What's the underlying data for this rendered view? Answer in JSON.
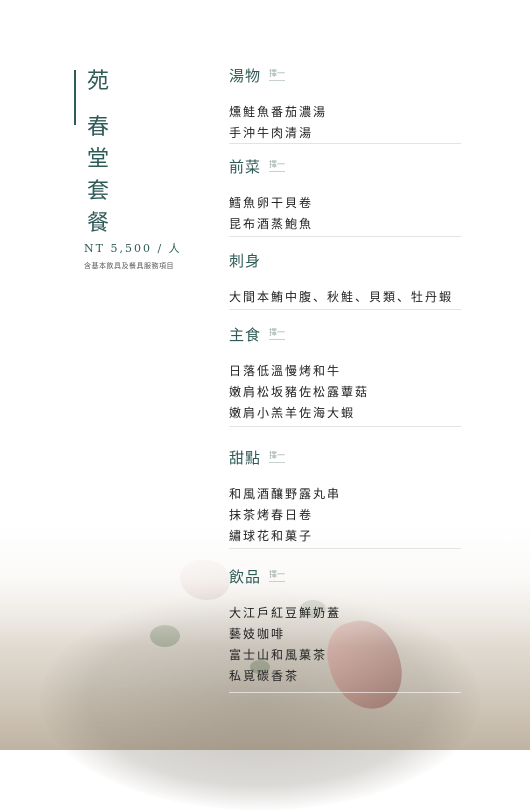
{
  "title": [
    "苑",
    "春",
    "堂",
    "套",
    "餐"
  ],
  "price": "NT 5,500 / 人",
  "note": "含基本飲具及餐具服務項目",
  "sections": [
    {
      "title": "湯物",
      "tag": "擇一",
      "items": [
        "燻鮭魚番茄濃湯",
        "手沖牛肉清湯"
      ]
    },
    {
      "title": "前菜",
      "tag": "擇一",
      "items": [
        "鱈魚卵干貝卷",
        "昆布酒蒸鮑魚"
      ]
    },
    {
      "title": "刺身",
      "tag": "",
      "items": [
        "大間本鮪中腹、秋鮭、貝類、牡丹蝦"
      ]
    },
    {
      "title": "主食",
      "tag": "擇一",
      "items": [
        "日落低溫慢烤和牛",
        "嫩肩松坂豬佐松露蕈菇",
        "嫩肩小羔羊佐海大蝦"
      ]
    },
    {
      "title": "甜點",
      "tag": "擇一",
      "items": [
        "和風酒釀野露丸串",
        "抹茶烤春日卷",
        "繡球花和菓子"
      ]
    },
    {
      "title": "飲品",
      "tag": "擇一",
      "items": [
        "大江戶紅豆鮮奶蓋",
        "藝妓咖啡",
        "富士山和風菓茶",
        "私覓碳香茶"
      ]
    }
  ],
  "colors": {
    "accent": "#2f5b57",
    "text": "#222222"
  }
}
